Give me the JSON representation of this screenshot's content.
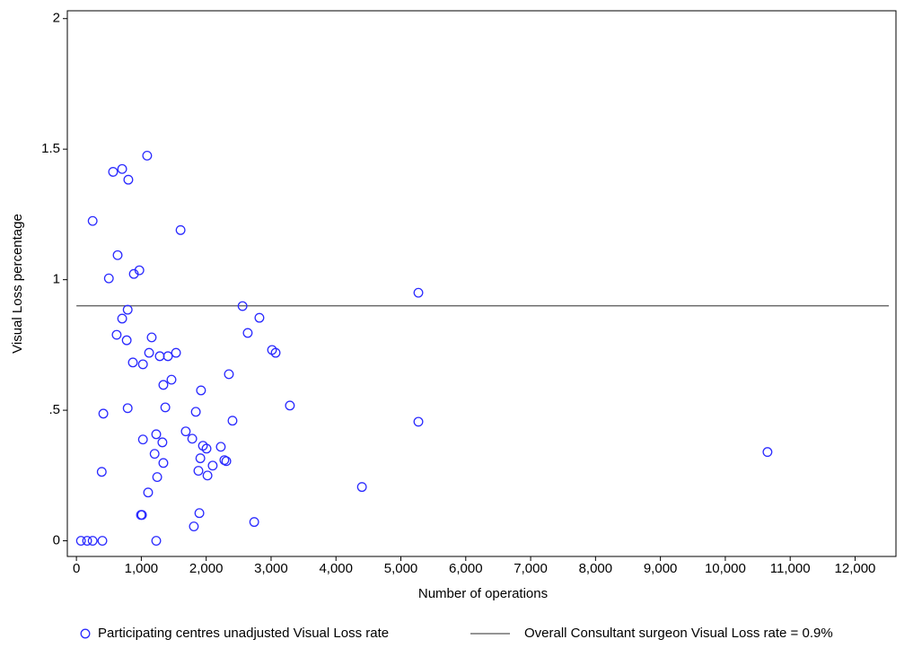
{
  "chart_data": {
    "type": "scatter",
    "x_label": "Number of operations",
    "y_label": "Visual Loss percentage",
    "xlim": [
      -140,
      12630
    ],
    "ylim": [
      -0.06,
      2.03
    ],
    "xticks": [
      0,
      {
        "value": 1000,
        "label": "1,000"
      },
      {
        "value": 2000,
        "label": "2,000"
      },
      {
        "value": 3000,
        "label": "3,000"
      },
      {
        "value": 4000,
        "label": "4,000"
      },
      {
        "value": 5000,
        "label": "5,000"
      },
      {
        "value": 6000,
        "label": "6,000"
      },
      {
        "value": 7000,
        "label": "7,000"
      },
      {
        "value": 8000,
        "label": "8,000"
      },
      {
        "value": 9000,
        "label": "9,000"
      },
      {
        "value": 10000,
        "label": "10,000"
      },
      {
        "value": 11000,
        "label": "11,000"
      },
      {
        "value": 12000,
        "label": "12,000"
      }
    ],
    "yticks": [
      0,
      {
        "value": 0.5,
        "label": ".5"
      },
      1,
      1.5,
      2
    ],
    "series": [
      {
        "name": "Participating centres unadjusted Visual Loss rate",
        "color": "#2b2bff",
        "x": [
          70,
          165,
          250,
          400,
          1230,
          250,
          390,
          415,
          500,
          565,
          705,
          800,
          635,
          620,
          705,
          790,
          775,
          790,
          885,
          970,
          870,
          1025,
          995,
          1010,
          1025,
          1090,
          1105,
          1120,
          1160,
          1205,
          1230,
          1245,
          1285,
          1325,
          1340,
          1340,
          1370,
          1410,
          1465,
          1535,
          1605,
          1685,
          1785,
          1810,
          1840,
          1880,
          1895,
          1910,
          1920,
          1950,
          2005,
          2020,
          2100,
          2225,
          2280,
          2310,
          2350,
          2405,
          2560,
          2640,
          2740,
          2820,
          3015,
          3070,
          3290,
          4400,
          5270,
          5270,
          10650
        ],
        "values": [
          0,
          0,
          0,
          0,
          0,
          1.225,
          0.264,
          0.487,
          1.005,
          1.413,
          1.424,
          1.383,
          1.094,
          0.789,
          0.851,
          0.885,
          0.768,
          0.508,
          1.022,
          1.036,
          0.683,
          0.676,
          0.099,
          0.099,
          0.388,
          1.475,
          0.185,
          0.72,
          0.779,
          0.333,
          0.408,
          0.244,
          0.707,
          0.377,
          0.298,
          0.597,
          0.511,
          0.707,
          0.617,
          0.72,
          1.19,
          0.419,
          0.391,
          0.055,
          0.494,
          0.268,
          0.106,
          0.316,
          0.576,
          0.364,
          0.353,
          0.25,
          0.288,
          0.36,
          0.309,
          0.305,
          0.638,
          0.46,
          0.899,
          0.796,
          0.072,
          0.854,
          0.731,
          0.72,
          0.518,
          0.206,
          0.95,
          0.456,
          0.34
        ]
      }
    ],
    "reference_line": {
      "name": "Overall Consultant surgeon Visual Loss rate = 0.9%",
      "color": "#555555",
      "y": 0.9,
      "x": [
        0,
        12520
      ]
    }
  }
}
